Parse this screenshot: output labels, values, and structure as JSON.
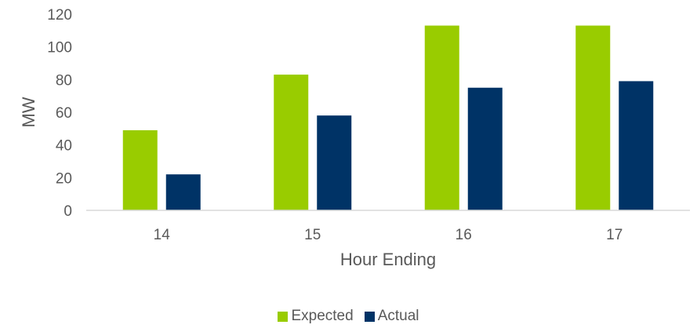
{
  "chart_data": {
    "type": "bar",
    "categories": [
      "14",
      "15",
      "16",
      "17"
    ],
    "series": [
      {
        "name": "Expected",
        "color": "#99cc00",
        "values": [
          49,
          83,
          113,
          113
        ]
      },
      {
        "name": "Actual",
        "color": "#003366",
        "values": [
          22,
          58,
          75,
          79
        ]
      }
    ],
    "title": "",
    "xlabel": "Hour Ending",
    "ylabel": "MW",
    "ylim": [
      0,
      120
    ],
    "yticks": [
      "0",
      "20",
      "40",
      "60",
      "80",
      "100",
      "120"
    ],
    "grid": false,
    "legend_position": "bottom"
  }
}
